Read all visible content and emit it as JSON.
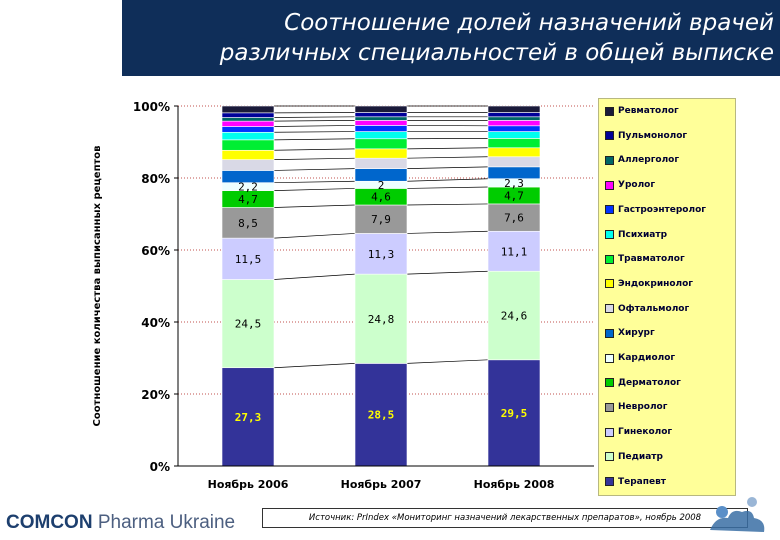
{
  "header": {
    "title_line1": "Соотношение долей назначений врачей",
    "title_line2": "различных специальностей в общей выписке",
    "band_color": "#0f2e59"
  },
  "chart_data": {
    "type": "bar",
    "stacked": true,
    "ylabel": "Соотношение количества выписанных рецептов",
    "ylim": [
      0,
      100
    ],
    "yticks": [
      "0%",
      "20%",
      "40%",
      "60%",
      "80%",
      "100%"
    ],
    "categories": [
      "Ноябрь 2006",
      "Ноябрь 2007",
      "Ноябрь 2008"
    ],
    "series": [
      {
        "name": "Терапевт",
        "color": "#333399",
        "values": [
          27.3,
          28.5,
          29.5
        ],
        "labels": [
          "27,3",
          "28,5",
          "29,5"
        ],
        "label_color": "#ffff00"
      },
      {
        "name": "Педиатр",
        "color": "#ccffcc",
        "values": [
          24.5,
          24.8,
          24.6
        ],
        "labels": [
          "24,5",
          "24,8",
          "24,6"
        ],
        "label_color": "#000000"
      },
      {
        "name": "Гинеколог",
        "color": "#ccccff",
        "values": [
          11.5,
          11.3,
          11.1
        ],
        "labels": [
          "11,5",
          "11,3",
          "11,1"
        ],
        "label_color": "#000000"
      },
      {
        "name": "Невролог",
        "color": "#999999",
        "values": [
          8.5,
          7.9,
          7.6
        ],
        "labels": [
          "8,5",
          "7,9",
          "7,6"
        ],
        "label_color": "#000000"
      },
      {
        "name": "Дерматолог",
        "color": "#00cc00",
        "values": [
          4.7,
          4.6,
          4.7
        ],
        "labels": [
          "4,7",
          "4,6",
          "4,7"
        ],
        "label_color": "#000000"
      },
      {
        "name": "Кардиолог",
        "color": "#eeffff",
        "values": [
          2.2,
          2.0,
          2.3
        ],
        "labels": [
          "2,2",
          "2",
          "2,3"
        ],
        "label_color": "#000000"
      },
      {
        "name": "Хирург",
        "color": "#0066cc",
        "values": [
          3.4,
          3.5,
          3.3
        ],
        "labels": [],
        "label_color": "#000000"
      },
      {
        "name": "Офтальмолог",
        "color": "#d9d9e6",
        "values": [
          3.0,
          2.9,
          2.8
        ],
        "labels": [],
        "label_color": "#000000"
      },
      {
        "name": "Эндокринолог",
        "color": "#ffff00",
        "values": [
          2.6,
          2.6,
          2.5
        ],
        "labels": [],
        "label_color": "#000000"
      },
      {
        "name": "Травматолог",
        "color": "#00ee33",
        "values": [
          2.9,
          2.8,
          2.6
        ],
        "labels": [],
        "label_color": "#000000"
      },
      {
        "name": "Психиатр",
        "color": "#00ffee",
        "values": [
          2.1,
          2.0,
          1.9
        ],
        "labels": [],
        "label_color": "#000000"
      },
      {
        "name": "Гастроэнтеролог",
        "color": "#0033ff",
        "values": [
          1.6,
          1.7,
          1.6
        ],
        "labels": [],
        "label_color": "#000000"
      },
      {
        "name": "Уролог",
        "color": "#ff00ff",
        "values": [
          1.5,
          1.4,
          1.5
        ],
        "labels": [],
        "label_color": "#000000"
      },
      {
        "name": "Аллерголог",
        "color": "#006666",
        "values": [
          1.0,
          1.0,
          1.0
        ],
        "labels": [],
        "label_color": "#000000"
      },
      {
        "name": "Пульмонолог",
        "color": "#000099",
        "values": [
          1.3,
          1.2,
          1.2
        ],
        "labels": [],
        "label_color": "#000000"
      },
      {
        "name": "Ревматолог",
        "color": "#1a1a3a",
        "values": [
          1.9,
          1.8,
          1.8
        ],
        "labels": [],
        "label_color": "#000000"
      }
    ],
    "legend_position": "right",
    "legend_order": [
      "Ревматолог",
      "Пульмонолог",
      "Аллерголог",
      "Уролог",
      "Гастроэнтеролог",
      "Психиатр",
      "Травматолог",
      "Эндокринолог",
      "Офтальмолог",
      "Хирург",
      "Кардиолог",
      "Дерматолог",
      "Невролог",
      "Гинеколог",
      "Педиатр",
      "Терапевт"
    ],
    "legend_background": "#ffff99",
    "gridlines": "dotted"
  },
  "source_note": "Источник: PrIndex «Мониторинг назначений лекарственных препаратов», ноябрь 2008",
  "logo": {
    "brand": "COMCON",
    "rest": " Pharma Ukraine"
  }
}
